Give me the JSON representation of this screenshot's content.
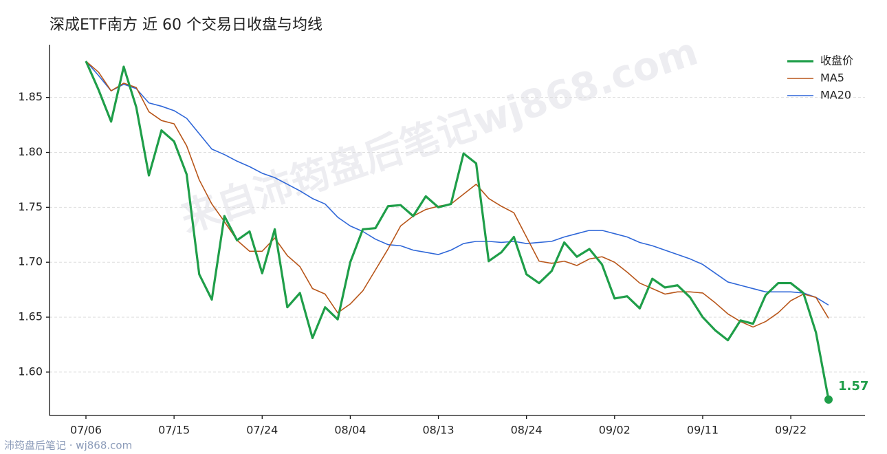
{
  "chart_data": {
    "type": "line",
    "title": "深成ETF南方 近 60 个交易日收盘与均线",
    "watermark": "来自沛筠盘后笔记wj868.com",
    "footer": "沛筠盘后笔记 · wj868.com",
    "categories": [
      "07/06",
      null,
      null,
      null,
      null,
      null,
      null,
      "07/15",
      null,
      null,
      null,
      null,
      null,
      null,
      "07/24",
      null,
      null,
      null,
      null,
      null,
      null,
      "08/04",
      null,
      null,
      null,
      null,
      null,
      null,
      "08/13",
      null,
      null,
      null,
      null,
      null,
      null,
      "08/24",
      null,
      null,
      null,
      null,
      null,
      null,
      "09/02",
      null,
      null,
      null,
      null,
      null,
      null,
      "09/11",
      null,
      null,
      null,
      null,
      null,
      null,
      "09/22",
      null,
      null,
      null
    ],
    "series": [
      {
        "name": "收盘价",
        "color": "#1f9e49",
        "width": 3.2,
        "values": [
          1.883,
          1.857,
          1.828,
          1.878,
          1.841,
          1.779,
          1.82,
          1.81,
          1.78,
          1.689,
          1.666,
          1.742,
          1.72,
          1.728,
          1.69,
          1.73,
          1.659,
          1.672,
          1.631,
          1.659,
          1.648,
          1.7,
          1.73,
          1.731,
          1.751,
          1.752,
          1.742,
          1.76,
          1.75,
          1.753,
          1.799,
          1.79,
          1.701,
          1.709,
          1.723,
          1.689,
          1.681,
          1.692,
          1.718,
          1.705,
          1.712,
          1.698,
          1.667,
          1.669,
          1.658,
          1.685,
          1.677,
          1.679,
          1.668,
          1.65,
          1.638,
          1.629,
          1.647,
          1.644,
          1.67,
          1.681,
          1.681,
          1.672,
          1.636,
          1.575
        ],
        "value_labels": [
          null,
          null,
          null,
          null,
          null,
          null,
          null,
          null,
          null,
          null,
          null,
          null,
          null,
          null,
          null,
          null,
          null,
          null,
          null,
          null,
          null,
          null,
          null,
          null,
          null,
          null,
          null,
          null,
          null,
          null,
          null,
          null,
          null,
          null,
          null,
          null,
          null,
          null,
          null,
          null,
          null,
          null,
          null,
          null,
          null,
          null,
          null,
          null,
          null,
          null,
          null,
          null,
          null,
          null,
          null,
          null,
          null,
          null,
          null,
          "1.57"
        ]
      },
      {
        "name": "MA5",
        "color": "#b8561a",
        "width": 1.6,
        "values": [
          1.883,
          1.873,
          1.856,
          1.863,
          1.859,
          1.837,
          1.829,
          1.826,
          1.806,
          1.775,
          1.753,
          1.737,
          1.72,
          1.71,
          1.71,
          1.722,
          1.706,
          1.696,
          1.676,
          1.671,
          1.654,
          1.662,
          1.674,
          1.693,
          1.712,
          1.733,
          1.742,
          1.748,
          1.751,
          1.753,
          1.762,
          1.771,
          1.758,
          1.751,
          1.745,
          1.723,
          1.701,
          1.699,
          1.701,
          1.697,
          1.703,
          1.705,
          1.7,
          1.691,
          1.681,
          1.676,
          1.671,
          1.673,
          1.673,
          1.672,
          1.663,
          1.653,
          1.646,
          1.641,
          1.646,
          1.654,
          1.665,
          1.671,
          1.668,
          1.649
        ]
      },
      {
        "name": "MA20",
        "color": "#2f67d8",
        "width": 1.6,
        "values": [
          1.883,
          1.87,
          1.856,
          1.862,
          1.858,
          1.845,
          1.842,
          1.838,
          1.831,
          1.817,
          1.803,
          1.798,
          1.792,
          1.787,
          1.781,
          1.777,
          1.771,
          1.765,
          1.758,
          1.753,
          1.741,
          1.733,
          1.728,
          1.721,
          1.716,
          1.715,
          1.711,
          1.709,
          1.707,
          1.711,
          1.717,
          1.719,
          1.719,
          1.718,
          1.719,
          1.717,
          1.718,
          1.719,
          1.723,
          1.726,
          1.729,
          1.729,
          1.726,
          1.723,
          1.718,
          1.715,
          1.711,
          1.707,
          1.703,
          1.698,
          1.69,
          1.682,
          1.679,
          1.676,
          1.673,
          1.673,
          1.673,
          1.672,
          1.668,
          1.661
        ]
      }
    ],
    "ylim": [
      1.5605,
      1.898
    ],
    "yticks": [
      {
        "value": 1.6,
        "label": "1.60"
      },
      1.65,
      {
        "value": 1.7,
        "label": "1.70"
      },
      1.75,
      {
        "value": 1.8,
        "label": "1.80"
      },
      1.85
    ],
    "grid": true,
    "legend": "upper right"
  }
}
